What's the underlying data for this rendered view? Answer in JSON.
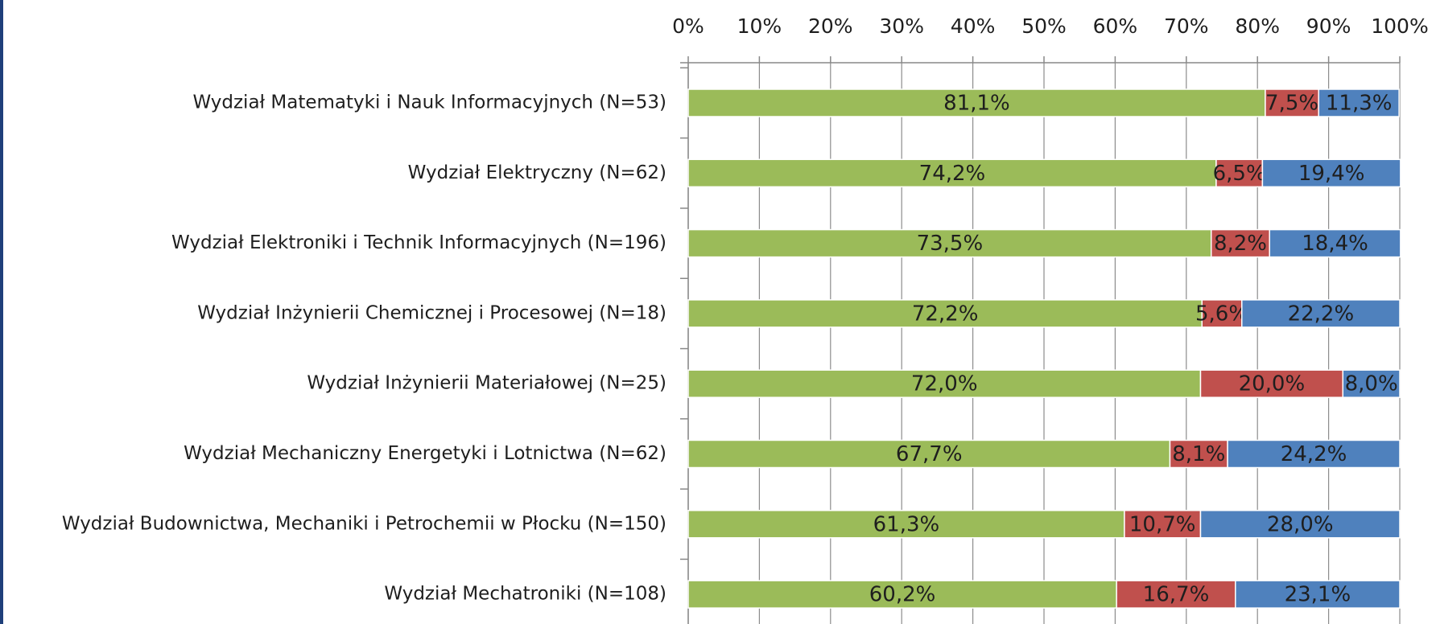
{
  "chart_data": {
    "type": "bar",
    "orientation": "horizontal",
    "stacked": true,
    "categories": [
      "Wydział Matematyki i Nauk Informacyjnych (N=53)",
      "Wydział Elektryczny (N=62)",
      "Wydział Elektroniki i Technik Informacyjnych (N=196)",
      "Wydział Inżynierii Chemicznej i Procesowej (N=18)",
      "Wydział Inżynierii Materiałowej (N=25)",
      "Wydział Mechaniczny Energetyki i Lotnictwa (N=62)",
      "Wydział Budownictwa, Mechaniki i Petrochemii w Płocku (N=150)",
      "Wydział Mechatroniki (N=108)"
    ],
    "series": [
      {
        "color": "#9bbb59",
        "values": [
          81.1,
          74.2,
          73.5,
          72.2,
          72.0,
          67.7,
          61.3,
          60.2
        ],
        "value_labels": [
          "81,1%",
          "74,2%",
          "73,5%",
          "72,2%",
          "72,0%",
          "67,7%",
          "61,3%",
          "60,2%"
        ]
      },
      {
        "color": "#c0504d",
        "values": [
          7.5,
          6.5,
          8.2,
          5.6,
          20.0,
          8.1,
          10.7,
          16.7
        ],
        "value_labels": [
          "7,5%",
          "6,5%",
          "8,2%",
          "5,6%",
          "20,0%",
          "8,1%",
          "10,7%",
          "16,7%"
        ]
      },
      {
        "color": "#4f81bd",
        "values": [
          11.3,
          19.4,
          18.4,
          22.2,
          8.0,
          24.2,
          28.0,
          23.1
        ],
        "value_labels": [
          "11,3%",
          "19,4%",
          "18,4%",
          "22,2%",
          "8,0%",
          "24,2%",
          "28,0%",
          "23,1%"
        ]
      }
    ],
    "xlim": [
      0,
      100
    ],
    "xticks": [
      {
        "value": 0,
        "label": "0%"
      },
      {
        "value": 10,
        "label": "10%"
      },
      {
        "value": 20,
        "label": "20%"
      },
      {
        "value": 30,
        "label": "30%"
      },
      {
        "value": 40,
        "label": "40%"
      },
      {
        "value": 50,
        "label": "50%"
      },
      {
        "value": 60,
        "label": "60%"
      },
      {
        "value": 70,
        "label": "70%"
      },
      {
        "value": 80,
        "label": "80%"
      },
      {
        "value": 90,
        "label": "90%"
      },
      {
        "value": 100,
        "label": "100%"
      }
    ],
    "grid": true
  }
}
